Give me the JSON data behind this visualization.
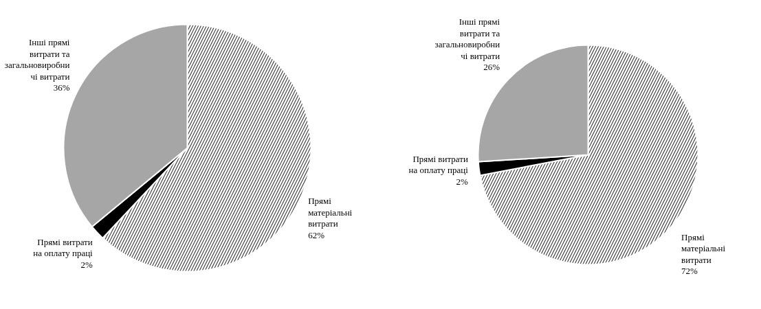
{
  "chart_data": [
    {
      "type": "pie",
      "categories": [
        "Прямі\nматеріальні\nвитрати",
        "Прямі витрати\nна оплату праці",
        "Інші прямі\nвитрати та\nзагальновиробни\nчі витрати"
      ],
      "values": [
        62,
        2,
        36
      ],
      "colors": [
        "#ffffff",
        "#000000",
        "#a6a6a6"
      ],
      "value_labels": [
        "62%",
        "2%",
        "36%"
      ]
    },
    {
      "type": "pie",
      "categories": [
        "Прямі\nматеріальні\nвитрати",
        "Прямі витрати\nна оплату праці",
        "Інші прямі\nвитрати та\nзагальновиробни\nчі витрати"
      ],
      "values": [
        72,
        2,
        26
      ],
      "colors": [
        "#ffffff",
        "#000000",
        "#a6a6a6"
      ],
      "value_labels": [
        "72%",
        "2%",
        "26%"
      ]
    }
  ]
}
